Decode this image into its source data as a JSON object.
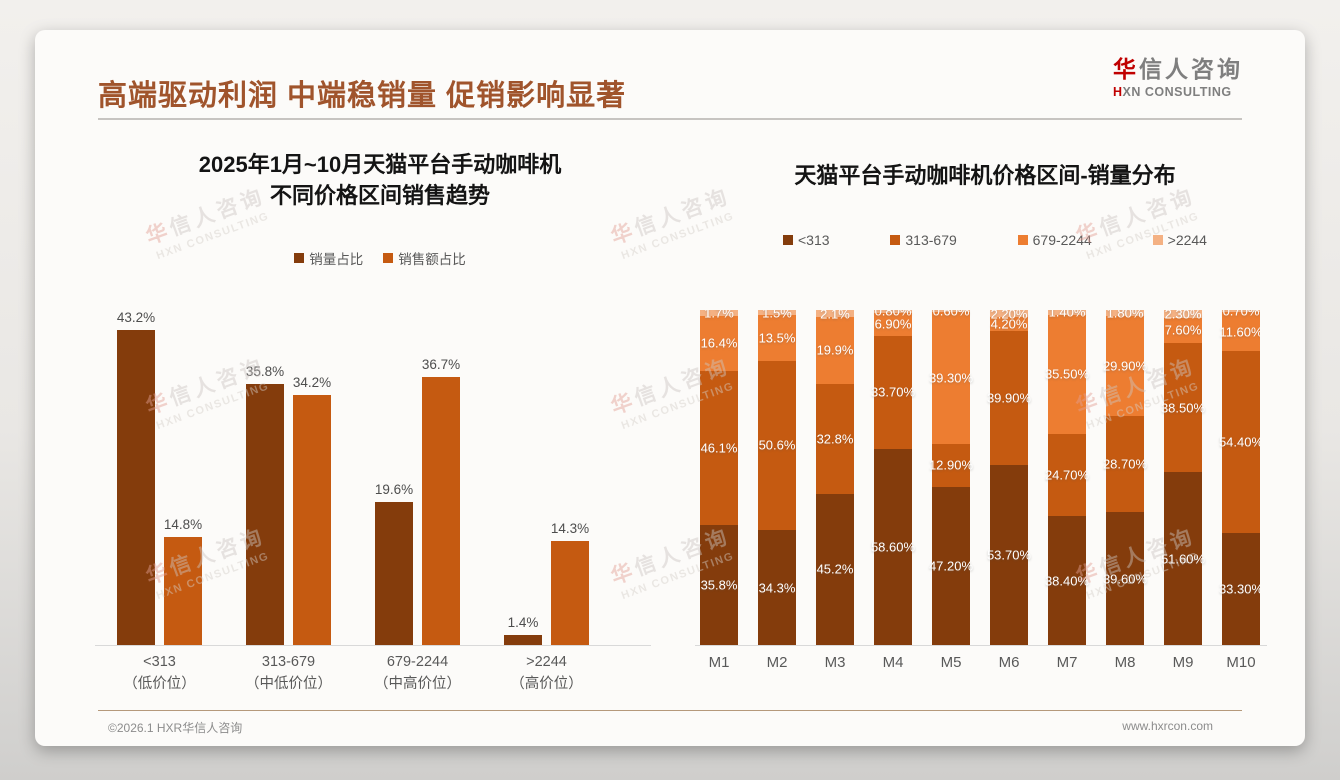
{
  "header": {
    "title": "高端驱动利润 中端稳销量 促销影响显著",
    "logo": {
      "brand_highlight": "华",
      "brand_rest": "信人咨询",
      "subtitle_highlight": "H",
      "subtitle_rest": "XN CONSULTING"
    }
  },
  "watermark": {
    "cn_highlight": "华",
    "cn_rest": "信人咨询",
    "en": "HXN CONSULTING"
  },
  "footer": {
    "copyright": "©2026.1 HXR华信人咨询",
    "website": "www.hxrcon.com"
  },
  "colors": {
    "title": "#A0542C",
    "band1": "#843C0C",
    "band2": "#C55A11",
    "band3": "#ED7D31",
    "band4": "#F4B183"
  },
  "chart_data": [
    {
      "type": "bar",
      "title_line1": "2025年1月~10月天猫平台手动咖啡机",
      "title_line2": "不同价格区间销售趋势",
      "categories": [
        "<313",
        "313-679",
        "679-2244",
        ">2244"
      ],
      "category_subs": [
        "（低价位）",
        "（中低价位）",
        "（中高价位）",
        "（高价位）"
      ],
      "series": [
        {
          "name": "销量占比",
          "color": "#843C0C",
          "values": [
            43.2,
            35.8,
            19.6,
            1.4
          ],
          "labels": [
            "43.2%",
            "35.8%",
            "19.6%",
            "1.4%"
          ]
        },
        {
          "name": "销售额占比",
          "color": "#C55A11",
          "values": [
            14.8,
            34.2,
            36.7,
            14.3
          ],
          "labels": [
            "14.8%",
            "34.2%",
            "36.7%",
            "14.3%"
          ]
        }
      ],
      "ylim": [
        0,
        45
      ],
      "grid": false,
      "data_labels": true,
      "legend_position": "top"
    },
    {
      "type": "bar",
      "stacked": true,
      "title": "天猫平台手动咖啡机价格区间-销量分布",
      "categories": [
        "M1",
        "M2",
        "M3",
        "M4",
        "M5",
        "M6",
        "M7",
        "M8",
        "M9",
        "M10"
      ],
      "series": [
        {
          "name": "<313",
          "color": "#843C0C",
          "values": [
            35.8,
            34.3,
            45.2,
            58.6,
            47.2,
            53.7,
            38.4,
            39.6,
            51.6,
            33.3
          ],
          "labels": [
            "35.8%",
            "34.3%",
            "45.2%",
            "58.60%",
            "47.20%",
            "53.70%",
            "38.40%",
            "39.60%",
            "51.60%",
            "33.30%"
          ]
        },
        {
          "name": "313-679",
          "color": "#C55A11",
          "values": [
            46.1,
            50.6,
            32.8,
            33.7,
            12.9,
            39.9,
            24.7,
            28.7,
            38.5,
            54.4
          ],
          "labels": [
            "46.1%",
            "50.6%",
            "32.8%",
            "33.70%",
            "12.90%",
            "39.90%",
            "24.70%",
            "28.70%",
            "38.50%",
            "54.40%"
          ]
        },
        {
          "name": "679-2244",
          "color": "#ED7D31",
          "values": [
            16.4,
            13.5,
            19.9,
            6.9,
            39.3,
            4.2,
            35.5,
            29.9,
            7.6,
            11.6
          ],
          "labels": [
            "16.4%",
            "13.5%",
            "19.9%",
            "6.90%",
            "39.30%",
            "4.20%",
            "35.50%",
            "29.90%",
            "7.60%",
            "11.60%"
          ]
        },
        {
          "name": ">2244",
          "color": "#F4B183",
          "values": [
            1.7,
            1.5,
            2.1,
            0.8,
            0.6,
            2.2,
            1.4,
            1.8,
            2.3,
            0.7
          ],
          "labels": [
            "1.7%",
            "1.5%",
            "2.1%",
            "0.80%",
            "0.60%",
            "2.20%",
            "1.40%",
            "1.80%",
            "2.30%",
            "0.70%"
          ]
        }
      ],
      "ylim": [
        0,
        100
      ],
      "grid": false,
      "data_labels": true,
      "legend_position": "top"
    }
  ]
}
